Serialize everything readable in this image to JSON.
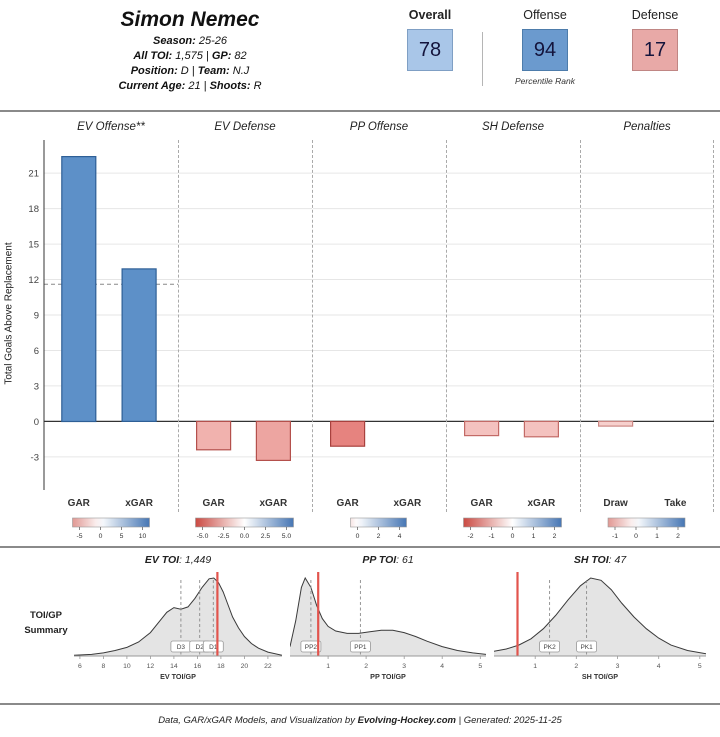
{
  "header": {
    "name": "Simon Nemec",
    "lines": {
      "season_label": "Season:",
      "season_value": " 25-26",
      "toi_label": "All TOI:",
      "toi_value": " 1,575",
      "sep1": " | ",
      "gp_label": "GP:",
      "gp_value": " 82",
      "pos_label": "Position:",
      "pos_value": " D",
      "sep2": " | ",
      "team_label": "Team:",
      "team_value": " N.J",
      "age_label": "Current Age:",
      "age_value": " 21",
      "sep3": " | ",
      "shoots_label": "Shoots:",
      "shoots_value": " R"
    }
  },
  "percentiles": {
    "caption": "Percentile Rank",
    "boxes": [
      {
        "label": "Overall",
        "value": "78",
        "bg": "#a9c6e8",
        "border": "#7f9fc4"
      },
      {
        "label": "Offense",
        "value": "94",
        "bg": "#6b9ace",
        "border": "#4d7cab"
      },
      {
        "label": "Defense",
        "value": "17",
        "bg": "#e8a9a7",
        "border": "#c08684"
      }
    ]
  },
  "chart_config": {
    "ylabel": "Total Goals Above Replacement",
    "vmin": -5.8,
    "vmax": 23.8,
    "yticks": [
      -3,
      0,
      3,
      6,
      9,
      12,
      15,
      18,
      21
    ]
  },
  "chart_data": [
    {
      "type": "bar",
      "title": "EV Offense**",
      "categories": [
        "GAR",
        "xGAR"
      ],
      "values": [
        22.4,
        12.9
      ],
      "ref_line": 11.6,
      "bar_colors": [
        "#5d90c8",
        "#5d90c8"
      ],
      "bar_strokes": [
        "#2e5f96",
        "#2e5f96"
      ],
      "legend": {
        "ticks": [
          -5,
          0,
          5,
          10
        ],
        "labels": [
          "-5",
          "0",
          "5",
          "10"
        ]
      }
    },
    {
      "type": "bar",
      "title": "EV Defense",
      "categories": [
        "GAR",
        "xGAR"
      ],
      "values": [
        -2.4,
        -3.3
      ],
      "ref_line": null,
      "bar_colors": [
        "#f1b2ae",
        "#eda5a1"
      ],
      "bar_strokes": [
        "#b4504c",
        "#b4504c"
      ],
      "legend": {
        "ticks": [
          -5,
          -2.5,
          0,
          2.5,
          5
        ],
        "labels": [
          "-5.0",
          "-2.5",
          "0.0",
          "2.5",
          "5.0"
        ]
      }
    },
    {
      "type": "bar",
      "title": "PP Offense",
      "categories": [
        "GAR",
        "xGAR"
      ],
      "values": [
        -2.1,
        0
      ],
      "ref_line": null,
      "bar_colors": [
        "#e6837f",
        "#ffffff"
      ],
      "bar_strokes": [
        "#a8413e",
        "#999999"
      ],
      "legend": {
        "ticks": [
          0,
          2,
          4
        ],
        "labels": [
          "0",
          "2",
          "4"
        ]
      }
    },
    {
      "type": "bar",
      "title": "SH Defense",
      "categories": [
        "GAR",
        "xGAR"
      ],
      "values": [
        -1.2,
        -1.3
      ],
      "ref_line": null,
      "bar_colors": [
        "#f4c2bf",
        "#f4c2bf"
      ],
      "bar_strokes": [
        "#c36a66",
        "#c36a66"
      ],
      "legend": {
        "ticks": [
          -2,
          -1,
          0,
          1,
          2
        ],
        "labels": [
          "-2",
          "-1",
          "0",
          "1",
          "2"
        ]
      }
    },
    {
      "type": "bar",
      "title": "Penalties",
      "categories": [
        "Draw",
        "Take"
      ],
      "values": [
        -0.4,
        0
      ],
      "ref_line": null,
      "bar_colors": [
        "#f7d0cd",
        "#ffffff"
      ],
      "bar_strokes": [
        "#cc8884",
        "#999999"
      ],
      "legend": {
        "ticks": [
          -1,
          0,
          1,
          2
        ],
        "labels": [
          "-1",
          "0",
          "1",
          "2"
        ]
      }
    }
  ],
  "toi_summary": {
    "label_line1": "TOI/GP",
    "label_line2": "Summary",
    "plots": [
      {
        "type": "area",
        "title_label": "EV TOI",
        "title_value": ": 1,449",
        "xlabel": "EV TOI/GP",
        "xmin": 5.5,
        "xmax": 23.2,
        "xticks": [
          6,
          8,
          10,
          12,
          14,
          16,
          18,
          20,
          22
        ],
        "curve": [
          [
            5.5,
            0.01
          ],
          [
            7,
            0.02
          ],
          [
            8,
            0.04
          ],
          [
            9,
            0.07
          ],
          [
            10,
            0.11
          ],
          [
            11,
            0.18
          ],
          [
            12,
            0.3
          ],
          [
            12.8,
            0.45
          ],
          [
            13.4,
            0.56
          ],
          [
            14,
            0.62
          ],
          [
            14.6,
            0.6
          ],
          [
            15.2,
            0.63
          ],
          [
            15.8,
            0.74
          ],
          [
            16.4,
            0.88
          ],
          [
            17,
            0.99
          ],
          [
            17.4,
            1.0
          ],
          [
            17.8,
            0.94
          ],
          [
            18.2,
            0.82
          ],
          [
            18.6,
            0.66
          ],
          [
            19,
            0.5
          ],
          [
            19.5,
            0.36
          ],
          [
            20,
            0.25
          ],
          [
            20.6,
            0.16
          ],
          [
            21.2,
            0.1
          ],
          [
            22,
            0.05
          ],
          [
            23.2,
            0.01
          ]
        ],
        "markers": [
          {
            "label": "D3",
            "x": 14.6
          },
          {
            "label": "D2",
            "x": 16.2
          },
          {
            "label": "D1",
            "x": 17.35
          }
        ],
        "player_line": 17.7
      },
      {
        "type": "area",
        "title_label": "PP TOI",
        "title_value": ": 61",
        "xlabel": "PP TOI/GP",
        "xmin": 0,
        "xmax": 5.15,
        "xticks": [
          1,
          2,
          3,
          4,
          5
        ],
        "curve": [
          [
            0,
            0.12
          ],
          [
            0.15,
            0.45
          ],
          [
            0.3,
            0.88
          ],
          [
            0.4,
            1.0
          ],
          [
            0.55,
            0.88
          ],
          [
            0.7,
            0.65
          ],
          [
            0.85,
            0.48
          ],
          [
            1.0,
            0.38
          ],
          [
            1.2,
            0.32
          ],
          [
            1.5,
            0.29
          ],
          [
            1.8,
            0.29
          ],
          [
            2.1,
            0.31
          ],
          [
            2.4,
            0.33
          ],
          [
            2.7,
            0.33
          ],
          [
            3.0,
            0.3
          ],
          [
            3.3,
            0.25
          ],
          [
            3.6,
            0.19
          ],
          [
            4.0,
            0.12
          ],
          [
            4.4,
            0.07
          ],
          [
            4.8,
            0.04
          ],
          [
            5.15,
            0.02
          ]
        ],
        "markers": [
          {
            "label": "PP2",
            "x": 0.55
          },
          {
            "label": "PP1",
            "x": 1.85
          }
        ],
        "player_line": 0.74
      },
      {
        "type": "area",
        "title_label": "SH TOI",
        "title_value": ": 47",
        "xlabel": "SH TOI/GP",
        "xmin": 0,
        "xmax": 5.15,
        "xticks": [
          1,
          2,
          3,
          4,
          5
        ],
        "curve": [
          [
            0,
            0.06
          ],
          [
            0.3,
            0.09
          ],
          [
            0.6,
            0.14
          ],
          [
            0.9,
            0.22
          ],
          [
            1.2,
            0.35
          ],
          [
            1.5,
            0.52
          ],
          [
            1.8,
            0.72
          ],
          [
            2.1,
            0.9
          ],
          [
            2.35,
            1.0
          ],
          [
            2.6,
            0.97
          ],
          [
            2.85,
            0.85
          ],
          [
            3.1,
            0.68
          ],
          [
            3.4,
            0.5
          ],
          [
            3.7,
            0.35
          ],
          [
            4.0,
            0.23
          ],
          [
            4.3,
            0.14
          ],
          [
            4.7,
            0.07
          ],
          [
            5.15,
            0.03
          ]
        ],
        "markers": [
          {
            "label": "PK2",
            "x": 1.35
          },
          {
            "label": "PK1",
            "x": 2.25
          }
        ],
        "player_line": 0.57
      }
    ]
  },
  "footer": {
    "pre": "Data, GAR/xGAR Models, and Visualization by ",
    "brand": "Evolving-Hockey.com",
    "post": " | Generated: 2025-11-25"
  }
}
